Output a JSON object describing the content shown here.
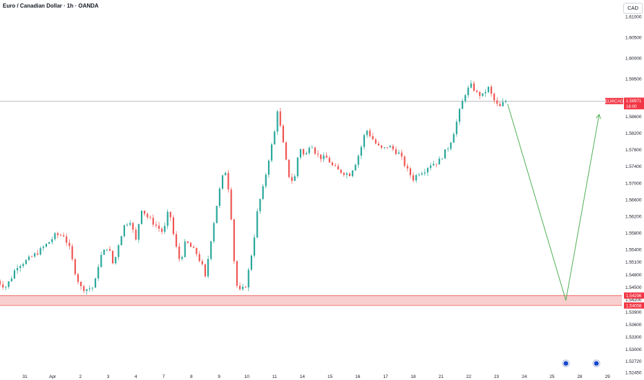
{
  "header": {
    "title": "Euro / Canadian Dollar · 1h · OANDA",
    "currency": "CAD"
  },
  "colors": {
    "up": "#26a69a",
    "down": "#ef5350",
    "zone_fill": "#f7c6c6",
    "zone_line": "#ef5350",
    "arrow": "#4caf50",
    "tag_red": "#f23645",
    "event_circle": "#1848cc"
  },
  "price_tags": {
    "symbol": "EURCAD",
    "last_price": "1.58971",
    "countdown": "16:00",
    "zone_top": "1.54296",
    "zone_bottom": "1.54058"
  },
  "chart_data": {
    "type": "candlestick",
    "symbol": "EURCAD",
    "timeframe": "1h",
    "source": "OANDA",
    "ylim": [
      1.5245,
      1.613
    ],
    "y_ticks": [
      1.61,
      1.605,
      1.6,
      1.595,
      1.586,
      1.582,
      1.578,
      1.574,
      1.57,
      1.566,
      1.562,
      1.558,
      1.554,
      1.551,
      1.548,
      1.545,
      1.542,
      1.539,
      1.536,
      1.533,
      1.53,
      1.5272,
      1.5245
    ],
    "y_tick_labels": [
      "1.61000",
      "1.60500",
      "1.60000",
      "1.59500",
      "1.58600",
      "1.58200",
      "1.57800",
      "1.57400",
      "1.57000",
      "1.56600",
      "1.56200",
      "1.55800",
      "1.55400",
      "1.55100",
      "1.54800",
      "1.54500",
      "1.54200",
      "1.53900",
      "1.53600",
      "1.53300",
      "1.53000",
      "1.52720",
      "1.52450"
    ],
    "x_ticks": [
      "31",
      "Apr",
      "2",
      "3",
      "4",
      "7",
      "8",
      "9",
      "10",
      "11",
      "14",
      "15",
      "16",
      "17",
      "18",
      "21",
      "22",
      "23",
      "24",
      "25",
      "28",
      "29"
    ],
    "x_range_days": [
      -1.5,
      22.6
    ],
    "price_path": [
      [
        -1.0,
        1.547
      ],
      [
        -0.8,
        1.546
      ],
      [
        -0.6,
        1.545
      ],
      [
        -0.4,
        1.547
      ],
      [
        -0.2,
        1.55
      ],
      [
        0.2,
        1.5515
      ],
      [
        0.6,
        1.5535
      ],
      [
        1.0,
        1.556
      ],
      [
        1.2,
        1.5575
      ],
      [
        1.5,
        1.5575
      ],
      [
        1.7,
        1.5545
      ],
      [
        1.9,
        1.549
      ],
      [
        2.1,
        1.545
      ],
      [
        2.3,
        1.5445
      ],
      [
        2.6,
        1.545
      ],
      [
        2.8,
        1.552
      ],
      [
        3.1,
        1.555
      ],
      [
        3.3,
        1.55
      ],
      [
        3.5,
        1.556
      ],
      [
        3.7,
        1.56
      ],
      [
        3.9,
        1.561
      ],
      [
        4.1,
        1.556
      ],
      [
        4.3,
        1.564
      ],
      [
        4.5,
        1.562
      ],
      [
        4.8,
        1.56
      ],
      [
        5.1,
        1.558
      ],
      [
        5.3,
        1.564
      ],
      [
        5.5,
        1.556
      ],
      [
        5.7,
        1.551
      ],
      [
        5.9,
        1.556
      ],
      [
        6.1,
        1.5545
      ],
      [
        6.3,
        1.553
      ],
      [
        6.5,
        1.55
      ],
      [
        6.6,
        1.547
      ],
      [
        6.8,
        1.556
      ],
      [
        7.0,
        1.564
      ],
      [
        7.2,
        1.571
      ],
      [
        7.35,
        1.573
      ],
      [
        7.5,
        1.566
      ],
      [
        7.6,
        1.556
      ],
      [
        7.7,
        1.546
      ],
      [
        7.85,
        1.544
      ],
      [
        8.05,
        1.545
      ],
      [
        8.2,
        1.55
      ],
      [
        8.35,
        1.556
      ],
      [
        8.5,
        1.564
      ],
      [
        8.7,
        1.569
      ],
      [
        8.9,
        1.576
      ],
      [
        9.1,
        1.582
      ],
      [
        9.2,
        1.588
      ],
      [
        9.4,
        1.58
      ],
      [
        9.6,
        1.572
      ],
      [
        9.8,
        1.57
      ],
      [
        10.0,
        1.579
      ],
      [
        10.2,
        1.576
      ],
      [
        10.4,
        1.58
      ],
      [
        10.6,
        1.577
      ],
      [
        10.8,
        1.576
      ],
      [
        11.0,
        1.576
      ],
      [
        11.2,
        1.574
      ],
      [
        11.4,
        1.573
      ],
      [
        11.6,
        1.5725
      ],
      [
        11.8,
        1.572
      ],
      [
        12.0,
        1.5745
      ],
      [
        12.2,
        1.578
      ],
      [
        12.4,
        1.583
      ],
      [
        12.6,
        1.581
      ],
      [
        12.8,
        1.579
      ],
      [
        13.0,
        1.578
      ],
      [
        13.2,
        1.579
      ],
      [
        13.4,
        1.578
      ],
      [
        13.6,
        1.577
      ],
      [
        13.9,
        1.573
      ],
      [
        14.1,
        1.571
      ],
      [
        14.3,
        1.5725
      ],
      [
        14.5,
        1.573
      ],
      [
        14.7,
        1.5745
      ],
      [
        15.0,
        1.575
      ],
      [
        15.2,
        1.577
      ],
      [
        15.4,
        1.579
      ],
      [
        15.6,
        1.583
      ],
      [
        15.8,
        1.588
      ],
      [
        16.0,
        1.592
      ],
      [
        16.2,
        1.5935
      ],
      [
        16.4,
        1.5915
      ],
      [
        16.6,
        1.591
      ],
      [
        16.8,
        1.593
      ],
      [
        17.0,
        1.59
      ],
      [
        17.2,
        1.588
      ],
      [
        17.4,
        1.5897
      ]
    ],
    "annotations": {
      "support_zone": [
        1.54058,
        1.54296
      ],
      "horizontal_line": 1.58971,
      "projection_path": [
        [
          17.4,
          1.589
        ],
        [
          19.5,
          1.5418
        ],
        [
          20.7,
          1.5865
        ]
      ],
      "events": [
        19.5,
        20.6
      ]
    }
  }
}
